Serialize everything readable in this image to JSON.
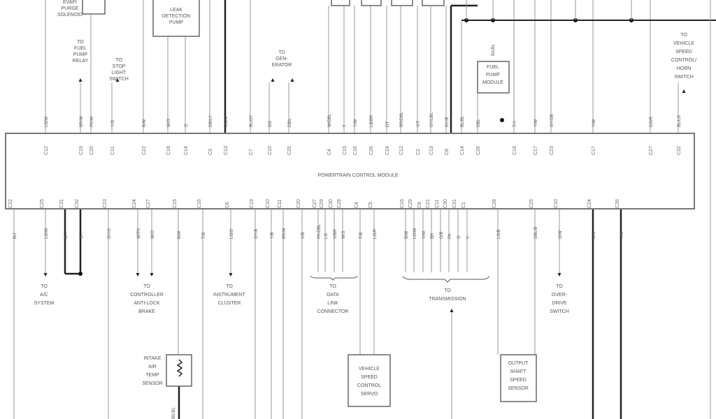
{
  "module": {
    "title": "POWERTRAIN CONTROL MODULE"
  },
  "top_pins": [
    {
      "wire": "LG/W",
      "pin": "C12"
    },
    {
      "wire": "BR/W",
      "pin": "C19"
    },
    {
      "wire": "PK/W",
      "pin": "C20"
    },
    {
      "wire": "Y/G",
      "pin": "C11"
    },
    {
      "wire": "B/W",
      "pin": "C22"
    },
    {
      "wire": "W/O",
      "pin": "C18"
    },
    {
      "wire": "O",
      "pin": "C14"
    },
    {
      "wire": "DB/LY",
      "pin": "C3"
    },
    {
      "wire": "DG/O",
      "pin": "C13"
    },
    {
      "wire": "BL/GY",
      "pin": "C7"
    },
    {
      "wire": "DG",
      "pin": "C10"
    },
    {
      "wire": "DB/L",
      "pin": "C25"
    },
    {
      "wire": "W/DBL",
      "pin": "C4"
    },
    {
      "wire": "T",
      "pin": "C15"
    },
    {
      "wire": "Y/W",
      "pin": "C16"
    },
    {
      "wire": "LB/BR",
      "pin": "C26"
    },
    {
      "wire": "DT",
      "pin": "C24"
    },
    {
      "wire": "BR/DBL",
      "pin": "C12"
    },
    {
      "wire": "V/T",
      "pin": "C2"
    },
    {
      "wire": "GY/LBL",
      "pin": "C13"
    },
    {
      "wire": "GY/B",
      "pin": "C8"
    },
    {
      "wire": "BL/BL",
      "pin": "C14"
    },
    {
      "wire": "DBL",
      "pin": "C26"
    },
    {
      "wire": "T/Y",
      "pin": "C18"
    },
    {
      "wire": "Y/W",
      "pin": "C17"
    },
    {
      "wire": "GY/DB",
      "pin": "C23"
    },
    {
      "wire": "Y/W",
      "pin": "C17"
    },
    {
      "wire": "DG/R",
      "pin": "C27"
    },
    {
      "wire": "BL/LG",
      "pin": "C32"
    }
  ],
  "bottom_pins": [
    {
      "wire": "B/J",
      "pin": "C22"
    },
    {
      "wire": "LG/W",
      "pin": "C25"
    },
    {
      "wire": "B/T",
      "pin": "C31"
    },
    {
      "wire": "B/T",
      "pin": "C32"
    },
    {
      "wire": "GY/O",
      "pin": "C23"
    },
    {
      "wire": "W/PK",
      "pin": "C24"
    },
    {
      "wire": "W/O",
      "pin": "C27"
    },
    {
      "wire": "B/W",
      "pin": "C15"
    },
    {
      "wire": "T/B",
      "pin": "C16"
    },
    {
      "wire": "LG/O",
      "pin": "C6"
    },
    {
      "wire": "GY/B",
      "pin": "C19"
    },
    {
      "wire": "Y/B",
      "pin": "C10"
    },
    {
      "wire": "BR/W",
      "pin": "C11"
    },
    {
      "wire": "V/B",
      "pin": "C20"
    },
    {
      "wire": "PK/DBL",
      "pin": "C27"
    },
    {
      "wire": "LG",
      "pin": "C29"
    },
    {
      "wire": "V/BR",
      "pin": "C30"
    },
    {
      "wire": "W/S",
      "pin": "C28"
    },
    {
      "wire": "T/B",
      "pin": "C4"
    },
    {
      "wire": "LG/R",
      "pin": "C5"
    },
    {
      "wire": "B/W",
      "pin": "C16"
    },
    {
      "wire": "LG/W",
      "pin": "C29"
    },
    {
      "wire": "V/W",
      "pin": "C8"
    },
    {
      "wire": "BR",
      "pin": "C21"
    },
    {
      "wire": "O/B",
      "pin": "C11"
    },
    {
      "wire": "PK",
      "pin": "C30"
    },
    {
      "wire": "O",
      "pin": "C31"
    },
    {
      "wire": "V",
      "pin": "C1"
    },
    {
      "wire": "LG/B",
      "pin": "C28"
    },
    {
      "wire": "DBL/B",
      "pin": "C25"
    },
    {
      "wire": "O/W",
      "pin": "C10"
    },
    {
      "wire": "O/B",
      "pin": "C24"
    },
    {
      "wire": "T/W",
      "pin": "C35"
    }
  ],
  "components": {
    "evap": [
      "EVAP/",
      "PURGE",
      "SOLENOID"
    ],
    "leak": [
      "LEAK",
      "DETECTION",
      "PUMP"
    ],
    "fuel_module": [
      "FUEL",
      "PUMP",
      "MODULE"
    ],
    "fuel_module_wire": "BA/BL",
    "iat": [
      "INTAKE",
      "AIR",
      "TEMP",
      "SENSOR"
    ],
    "iat_wire": "BK/BL",
    "servo": [
      "VEHICLE",
      "SPEED",
      "CONTROL",
      "SERVO"
    ],
    "ossensor": [
      "OUTPUT",
      "SHAFT",
      "SPEED",
      "SENSOR"
    ]
  },
  "destinations": {
    "fuel_relay": [
      "TO",
      "FUEL",
      "PUMP",
      "RELAY"
    ],
    "stop_light": [
      "TO",
      "STOP",
      "LIGHT",
      "SWITCH"
    ],
    "generator": [
      "TO",
      "GEN-",
      "ERATOR"
    ],
    "speed_horn": [
      "TO",
      "VEHICLE",
      "SPEED",
      "CONTROL/",
      "HORN",
      "SWITCH"
    ],
    "ac": [
      "TO",
      "A/C",
      "SYSTEM"
    ],
    "abs": [
      "TO",
      "CONTROLLER",
      "ANTI-LOCK",
      "BRAKE"
    ],
    "cluster": [
      "TO",
      "INSTRUMENT",
      "CLUSTER"
    ],
    "dlc": [
      "TO",
      "DATA",
      "LINK",
      "CONNECTOR"
    ],
    "transmission": [
      "TO",
      "TRANSMISSION"
    ],
    "overdrive": [
      "TO",
      "OVER-",
      "DRIVE",
      "SWITCH"
    ]
  },
  "colors": {
    "line": "#9a9a9a",
    "heavy": "#222222",
    "box": "#666666"
  }
}
